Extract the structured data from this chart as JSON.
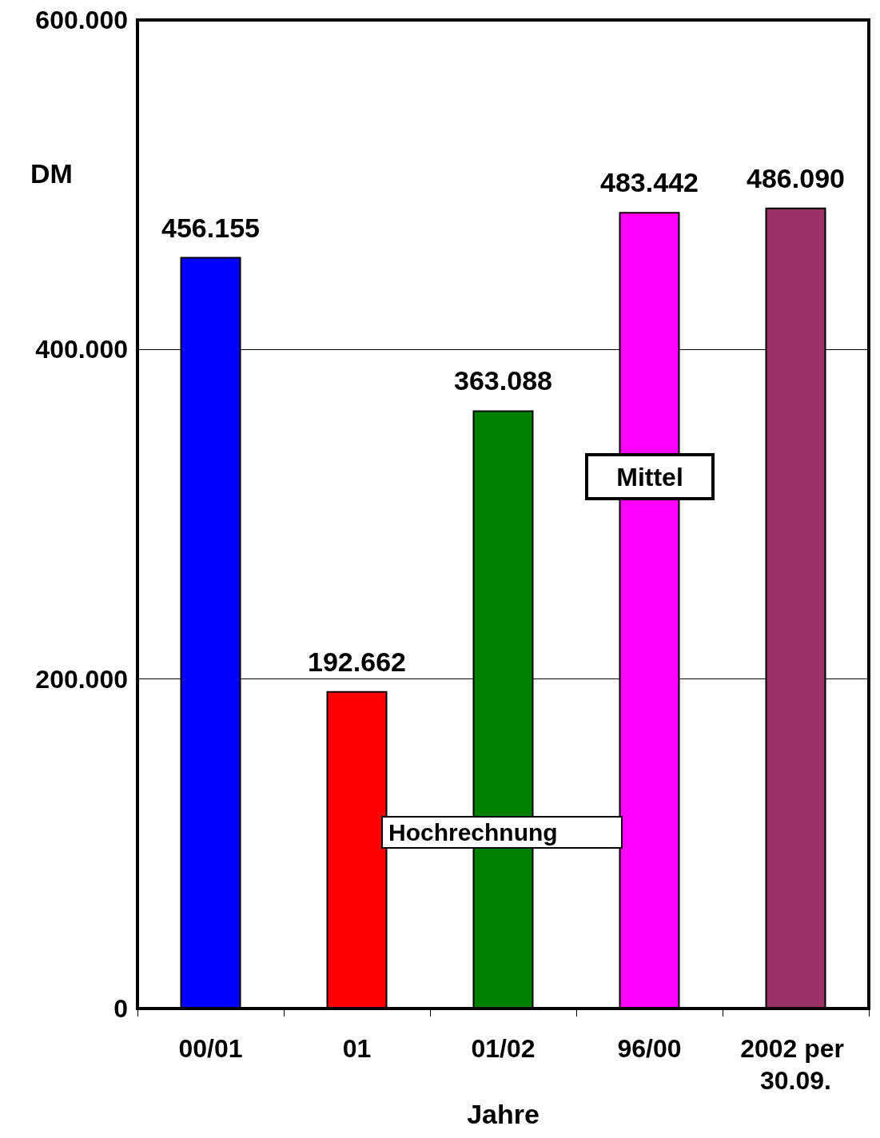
{
  "chart_data": {
    "type": "bar",
    "xlabel": "Jahre",
    "ylabel": "DM",
    "categories": [
      "00/01",
      "01",
      "01/02",
      "96/00",
      "2002 per 30.09."
    ],
    "values": [
      456155,
      192662,
      363088,
      483442,
      486090
    ],
    "colors": [
      "#0000ff",
      "#ff0000",
      "#008000",
      "#ff00ff",
      "#993366"
    ],
    "value_labels": [
      "456.155",
      "192.662",
      "363.088",
      "483.442",
      "486.090"
    ],
    "ylim": [
      0,
      600000
    ],
    "yticks": [
      {
        "value": 0,
        "label": "0"
      },
      {
        "value": 200000,
        "label": "200.000"
      },
      {
        "value": 400000,
        "label": "400.000"
      },
      {
        "value": 600000,
        "label": "600.000"
      }
    ],
    "grid": "y",
    "annotations": [
      "Mittel",
      "Hochrechnung"
    ]
  }
}
